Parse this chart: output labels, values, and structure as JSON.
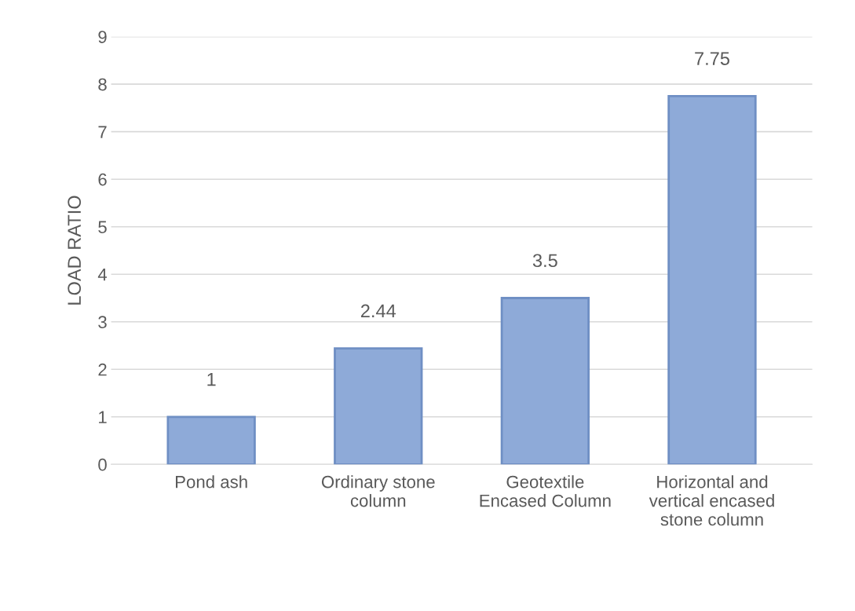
{
  "chart_data": {
    "type": "bar",
    "ylabel": "LOAD RATIO",
    "categories": [
      "Pond ash",
      "Ordinary stone\ncolumn",
      "Geotextile\nEncased Column",
      "Horizontal and\nvertical encased\nstone column"
    ],
    "values": [
      1,
      2.44,
      3.5,
      7.75
    ],
    "color": "#8eaad8",
    "data_labels": true,
    "ylim": [
      0,
      9
    ],
    "yticks": [
      0,
      1,
      2,
      3,
      4,
      5,
      6,
      7,
      8,
      9
    ],
    "grid": "y"
  }
}
